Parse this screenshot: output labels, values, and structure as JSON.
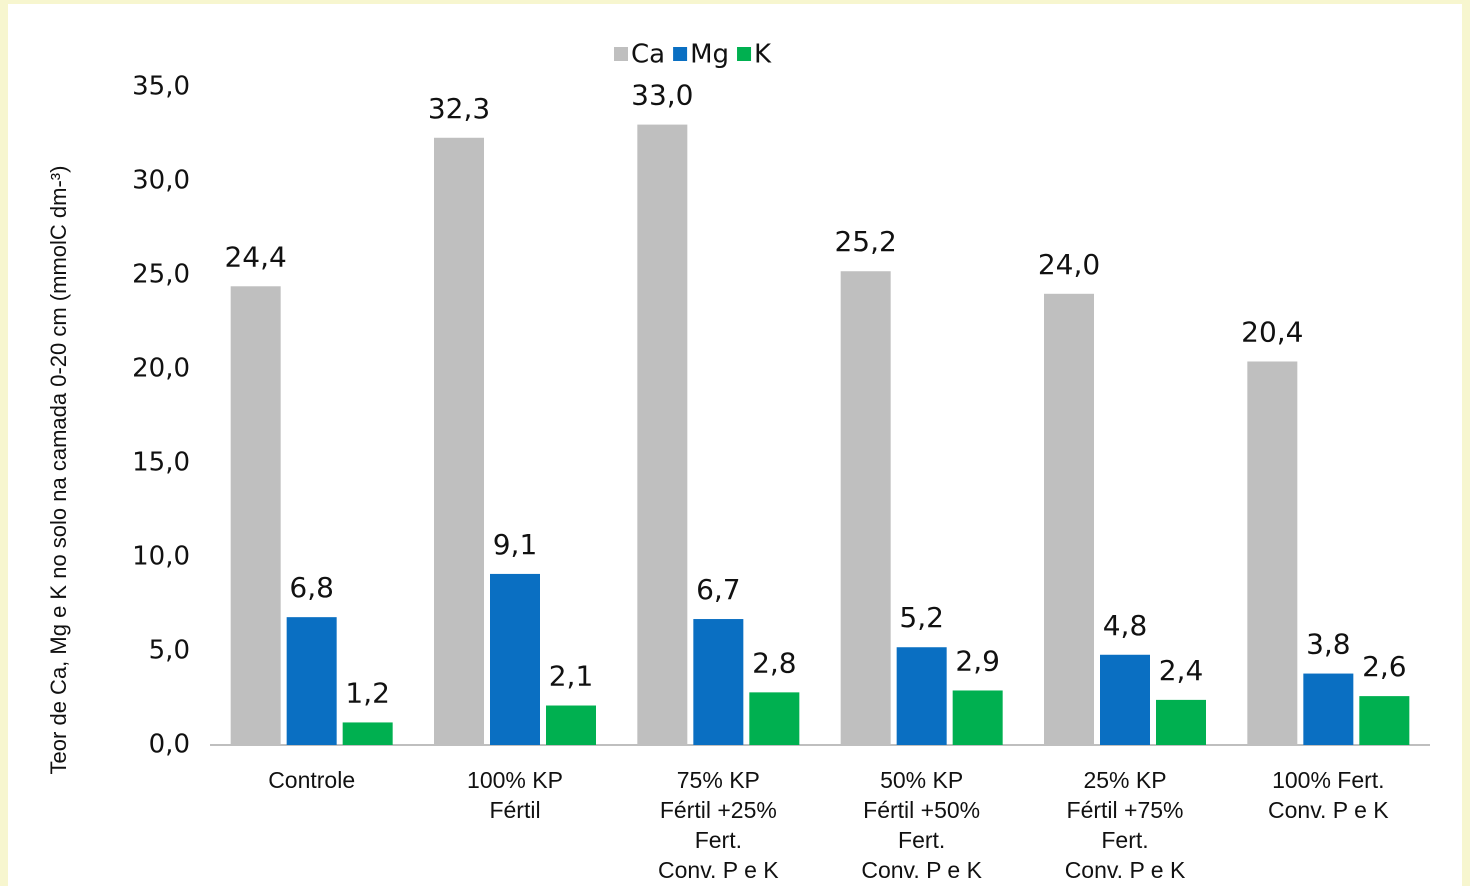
{
  "chart_data": {
    "type": "bar",
    "y_label": "Teor de Ca, Mg e K no solo na camada 0-20 cm (mmolC dm-³)",
    "categories": [
      "Controle",
      "100% KP\nFértil",
      "75% KP\nFértil +25%\nFert.\nConv. P e K",
      "50% KP\nFértil +50%\nFert.\nConv. P e K",
      "25% KP\nFértil +75%\nFert.\nConv. P e K",
      "100% Fert.\nConv. P e K"
    ],
    "series": [
      {
        "name": "Ca",
        "color": "#bfbfbf",
        "values": [
          24.4,
          32.3,
          33.0,
          25.2,
          24.0,
          20.4
        ],
        "value_labels": [
          "24,4",
          "32,3",
          "33,0",
          "25,2",
          "24,0",
          "20,4"
        ]
      },
      {
        "name": "Mg",
        "color": "#0a6fc2",
        "values": [
          6.8,
          9.1,
          6.7,
          5.2,
          4.8,
          3.8
        ],
        "value_labels": [
          "6,8",
          "9,1",
          "6,7",
          "5,2",
          "4,8",
          "3,8"
        ]
      },
      {
        "name": "K",
        "color": "#00b050",
        "values": [
          1.2,
          2.1,
          2.8,
          2.9,
          2.4,
          2.6
        ],
        "value_labels": [
          "1,2",
          "2,1",
          "2,8",
          "2,9",
          "2,4",
          "2,6"
        ]
      }
    ],
    "ylim": [
      0,
      35
    ],
    "yticks": [
      {
        "value": 0,
        "label": "0,0"
      },
      {
        "value": 5,
        "label": "5,0"
      },
      {
        "value": 10,
        "label": "10,0"
      },
      {
        "value": 15,
        "label": "15,0"
      },
      {
        "value": 20,
        "label": "20,0"
      },
      {
        "value": 25,
        "label": "25,0"
      },
      {
        "value": 30,
        "label": "30,0"
      },
      {
        "value": 35,
        "label": "35,0"
      }
    ],
    "grid": false,
    "legend": "top"
  }
}
